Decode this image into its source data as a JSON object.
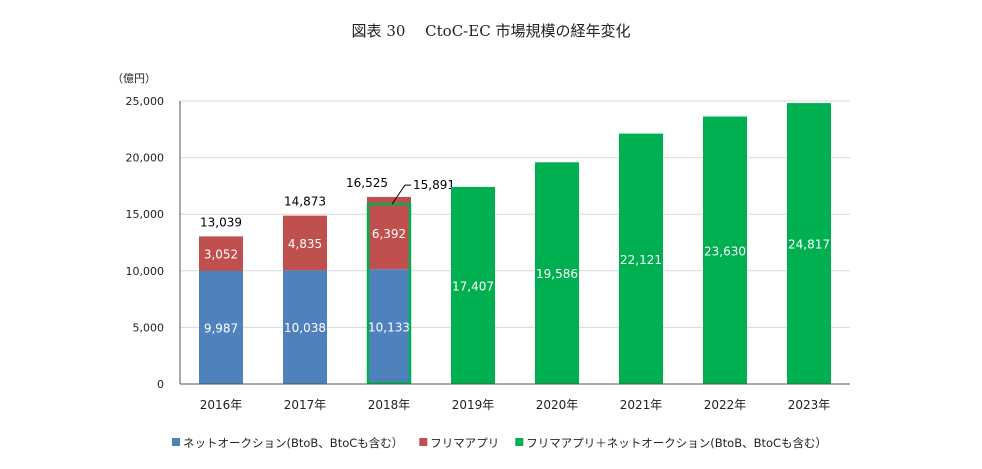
{
  "chart_data": {
    "type": "bar",
    "title": "図表 30　 CtoC-EC 市場規模の経年変化",
    "ylabel": "（億円）",
    "xlabel": "",
    "ylim": [
      0,
      25000
    ],
    "yticks": [
      "0",
      "5,000",
      "10,000",
      "15,000",
      "20,000",
      "25,000"
    ],
    "grid": true,
    "legend_position": "bottom",
    "categories": [
      "2016年",
      "2017年",
      "2018年",
      "2019年",
      "2020年",
      "2021年",
      "2022年",
      "2023年"
    ],
    "series": [
      {
        "name": "ネットオークション(BtoB、BtoCも含む）",
        "color": "#4f81bd",
        "values": [
          9987,
          10038,
          10133,
          null,
          null,
          null,
          null,
          null
        ],
        "labels": [
          "9,987",
          "10,038",
          "10,133",
          null,
          null,
          null,
          null,
          null
        ]
      },
      {
        "name": "フリマアプリ",
        "color": "#c0504d",
        "values": [
          3052,
          4835,
          6392,
          null,
          null,
          null,
          null,
          null
        ],
        "labels": [
          "3,052",
          "4,835",
          "6,392",
          null,
          null,
          null,
          null,
          null
        ]
      },
      {
        "name": "フリマアプリ＋ネットオークション(BtoB、BtoCも含む）",
        "color": "#00b050",
        "values": [
          null,
          null,
          15891,
          17407,
          19586,
          22121,
          23630,
          24817
        ],
        "labels": [
          null,
          null,
          "15,891",
          "17,407",
          "19,586",
          "22,121",
          "23,630",
          "24,817"
        ],
        "outline_only": [
          false,
          false,
          true,
          false,
          false,
          false,
          false,
          false
        ]
      }
    ],
    "totals": [
      "13,039",
      "14,873",
      "16,525",
      null,
      null,
      null,
      null,
      null
    ]
  }
}
